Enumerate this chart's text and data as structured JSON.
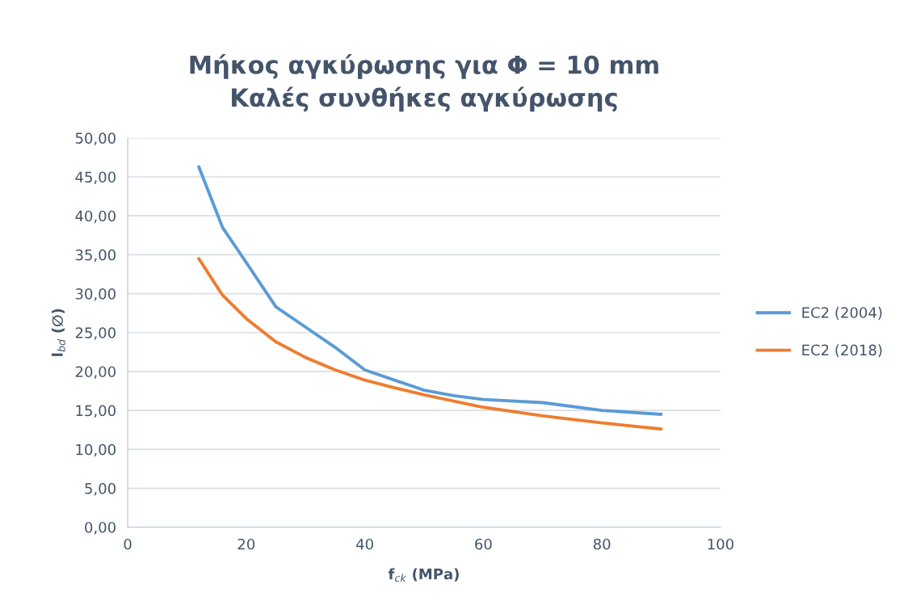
{
  "chart_data": {
    "type": "line",
    "title": "Μήκος αγκύρωσης για Φ = 10 mm\nΚαλές συνθήκες αγκύρωσης",
    "xlabel": "f$_{ck}$ (MPa)",
    "ylabel": "l$_{bd}$ (∅)",
    "x": [
      12,
      16,
      20,
      25,
      30,
      35,
      40,
      45,
      50,
      55,
      60,
      70,
      80,
      90
    ],
    "series": [
      {
        "name": "EC2 (2004)",
        "color": "#5b9bd5",
        "values": [
          46.3,
          38.5,
          34.0,
          28.3,
          25.7,
          23.1,
          20.2,
          18.9,
          17.6,
          16.9,
          16.4,
          16.0,
          15.0,
          14.5
        ]
      },
      {
        "name": "EC2 (2018)",
        "color": "#ed7d31",
        "values": [
          34.5,
          29.8,
          26.8,
          23.8,
          21.8,
          20.2,
          18.9,
          17.9,
          17.0,
          16.2,
          15.4,
          14.3,
          13.4,
          12.6
        ]
      }
    ],
    "xlim": [
      0,
      100
    ],
    "xticks": [
      0,
      20,
      40,
      60,
      80,
      100
    ],
    "ylim": [
      0,
      50
    ],
    "yticks": [
      {
        "value": 0,
        "label": "0,00"
      },
      {
        "value": 5,
        "label": "5,00"
      },
      {
        "value": 10,
        "label": "10,00"
      },
      {
        "value": 15,
        "label": "15,00"
      },
      {
        "value": 20,
        "label": "20,00"
      },
      {
        "value": 25,
        "label": "25,00"
      },
      {
        "value": 30,
        "label": "30,00"
      },
      {
        "value": 35,
        "label": "35,00"
      },
      {
        "value": 40,
        "label": "40,00"
      },
      {
        "value": 45,
        "label": "45,00"
      },
      {
        "value": 50,
        "label": "50,00"
      }
    ],
    "grid": "y",
    "legend": "right",
    "marker": "none",
    "line_style": "solid"
  }
}
